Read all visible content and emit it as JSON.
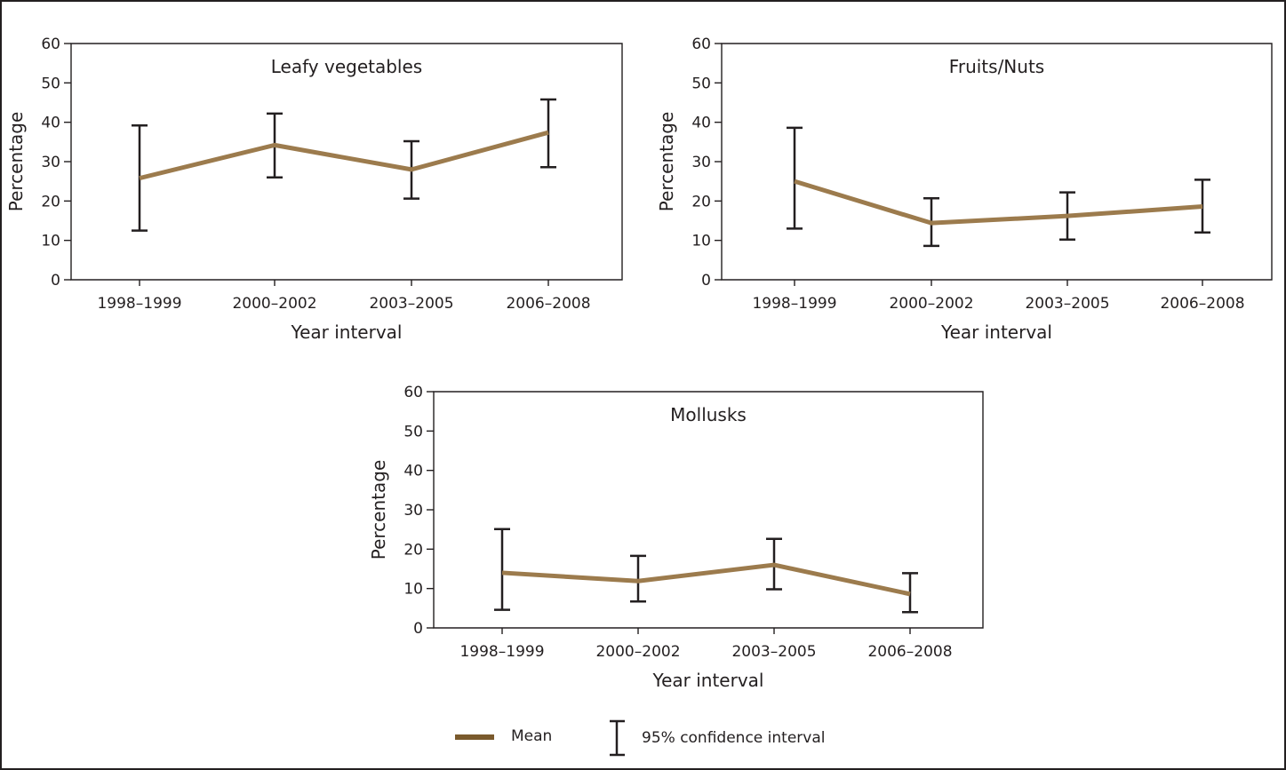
{
  "chart_data": [
    {
      "type": "line",
      "title": "Leafy vegetables",
      "xlabel": "Year interval",
      "ylabel": "Percentage",
      "categories": [
        "1998–1999",
        "2000–2002",
        "2003–2005",
        "2006–2008"
      ],
      "ylim": [
        0,
        60
      ],
      "yticks": [
        0,
        10,
        20,
        30,
        40,
        50,
        60
      ],
      "series": [
        {
          "values": [
            25.8,
            34.2,
            28.0,
            37.4
          ]
        }
      ],
      "ci_lower": [
        12.5,
        26.0,
        20.6,
        28.6
      ],
      "ci_upper": [
        39.2,
        42.2,
        35.2,
        45.8
      ],
      "grid": false
    },
    {
      "type": "line",
      "title": "Fruits/Nuts",
      "xlabel": "Year interval",
      "ylabel": "Percentage",
      "categories": [
        "1998–1999",
        "2000–2002",
        "2003–2005",
        "2006–2008"
      ],
      "ylim": [
        0,
        60
      ],
      "yticks": [
        0,
        10,
        20,
        30,
        40,
        50,
        60
      ],
      "series": [
        {
          "values": [
            25.0,
            14.4,
            16.2,
            18.6
          ]
        }
      ],
      "ci_lower": [
        13.0,
        8.6,
        10.2,
        12.0
      ],
      "ci_upper": [
        38.6,
        20.7,
        22.2,
        25.4
      ],
      "grid": false
    },
    {
      "type": "line",
      "title": "Mollusks",
      "xlabel": "Year interval",
      "ylabel": "Percentage",
      "categories": [
        "1998–1999",
        "2000–2002",
        "2003–2005",
        "2006–2008"
      ],
      "ylim": [
        0,
        60
      ],
      "yticks": [
        0,
        10,
        20,
        30,
        40,
        50,
        60
      ],
      "series": [
        {
          "values": [
            14.0,
            11.9,
            16.0,
            8.6
          ]
        }
      ],
      "ci_lower": [
        4.6,
        6.7,
        9.8,
        4.0
      ],
      "ci_upper": [
        25.1,
        18.3,
        22.6,
        13.9
      ],
      "grid": false
    }
  ],
  "legend": {
    "mean_label": "Mean",
    "ci_label": "95% confidence interval"
  },
  "colors": {
    "mean_line": "#9c7b4d",
    "legend_mean_swatch": "#7a5a2c",
    "error_bar": "#231f20",
    "axis": "#231f20",
    "frame": "#231f20"
  }
}
